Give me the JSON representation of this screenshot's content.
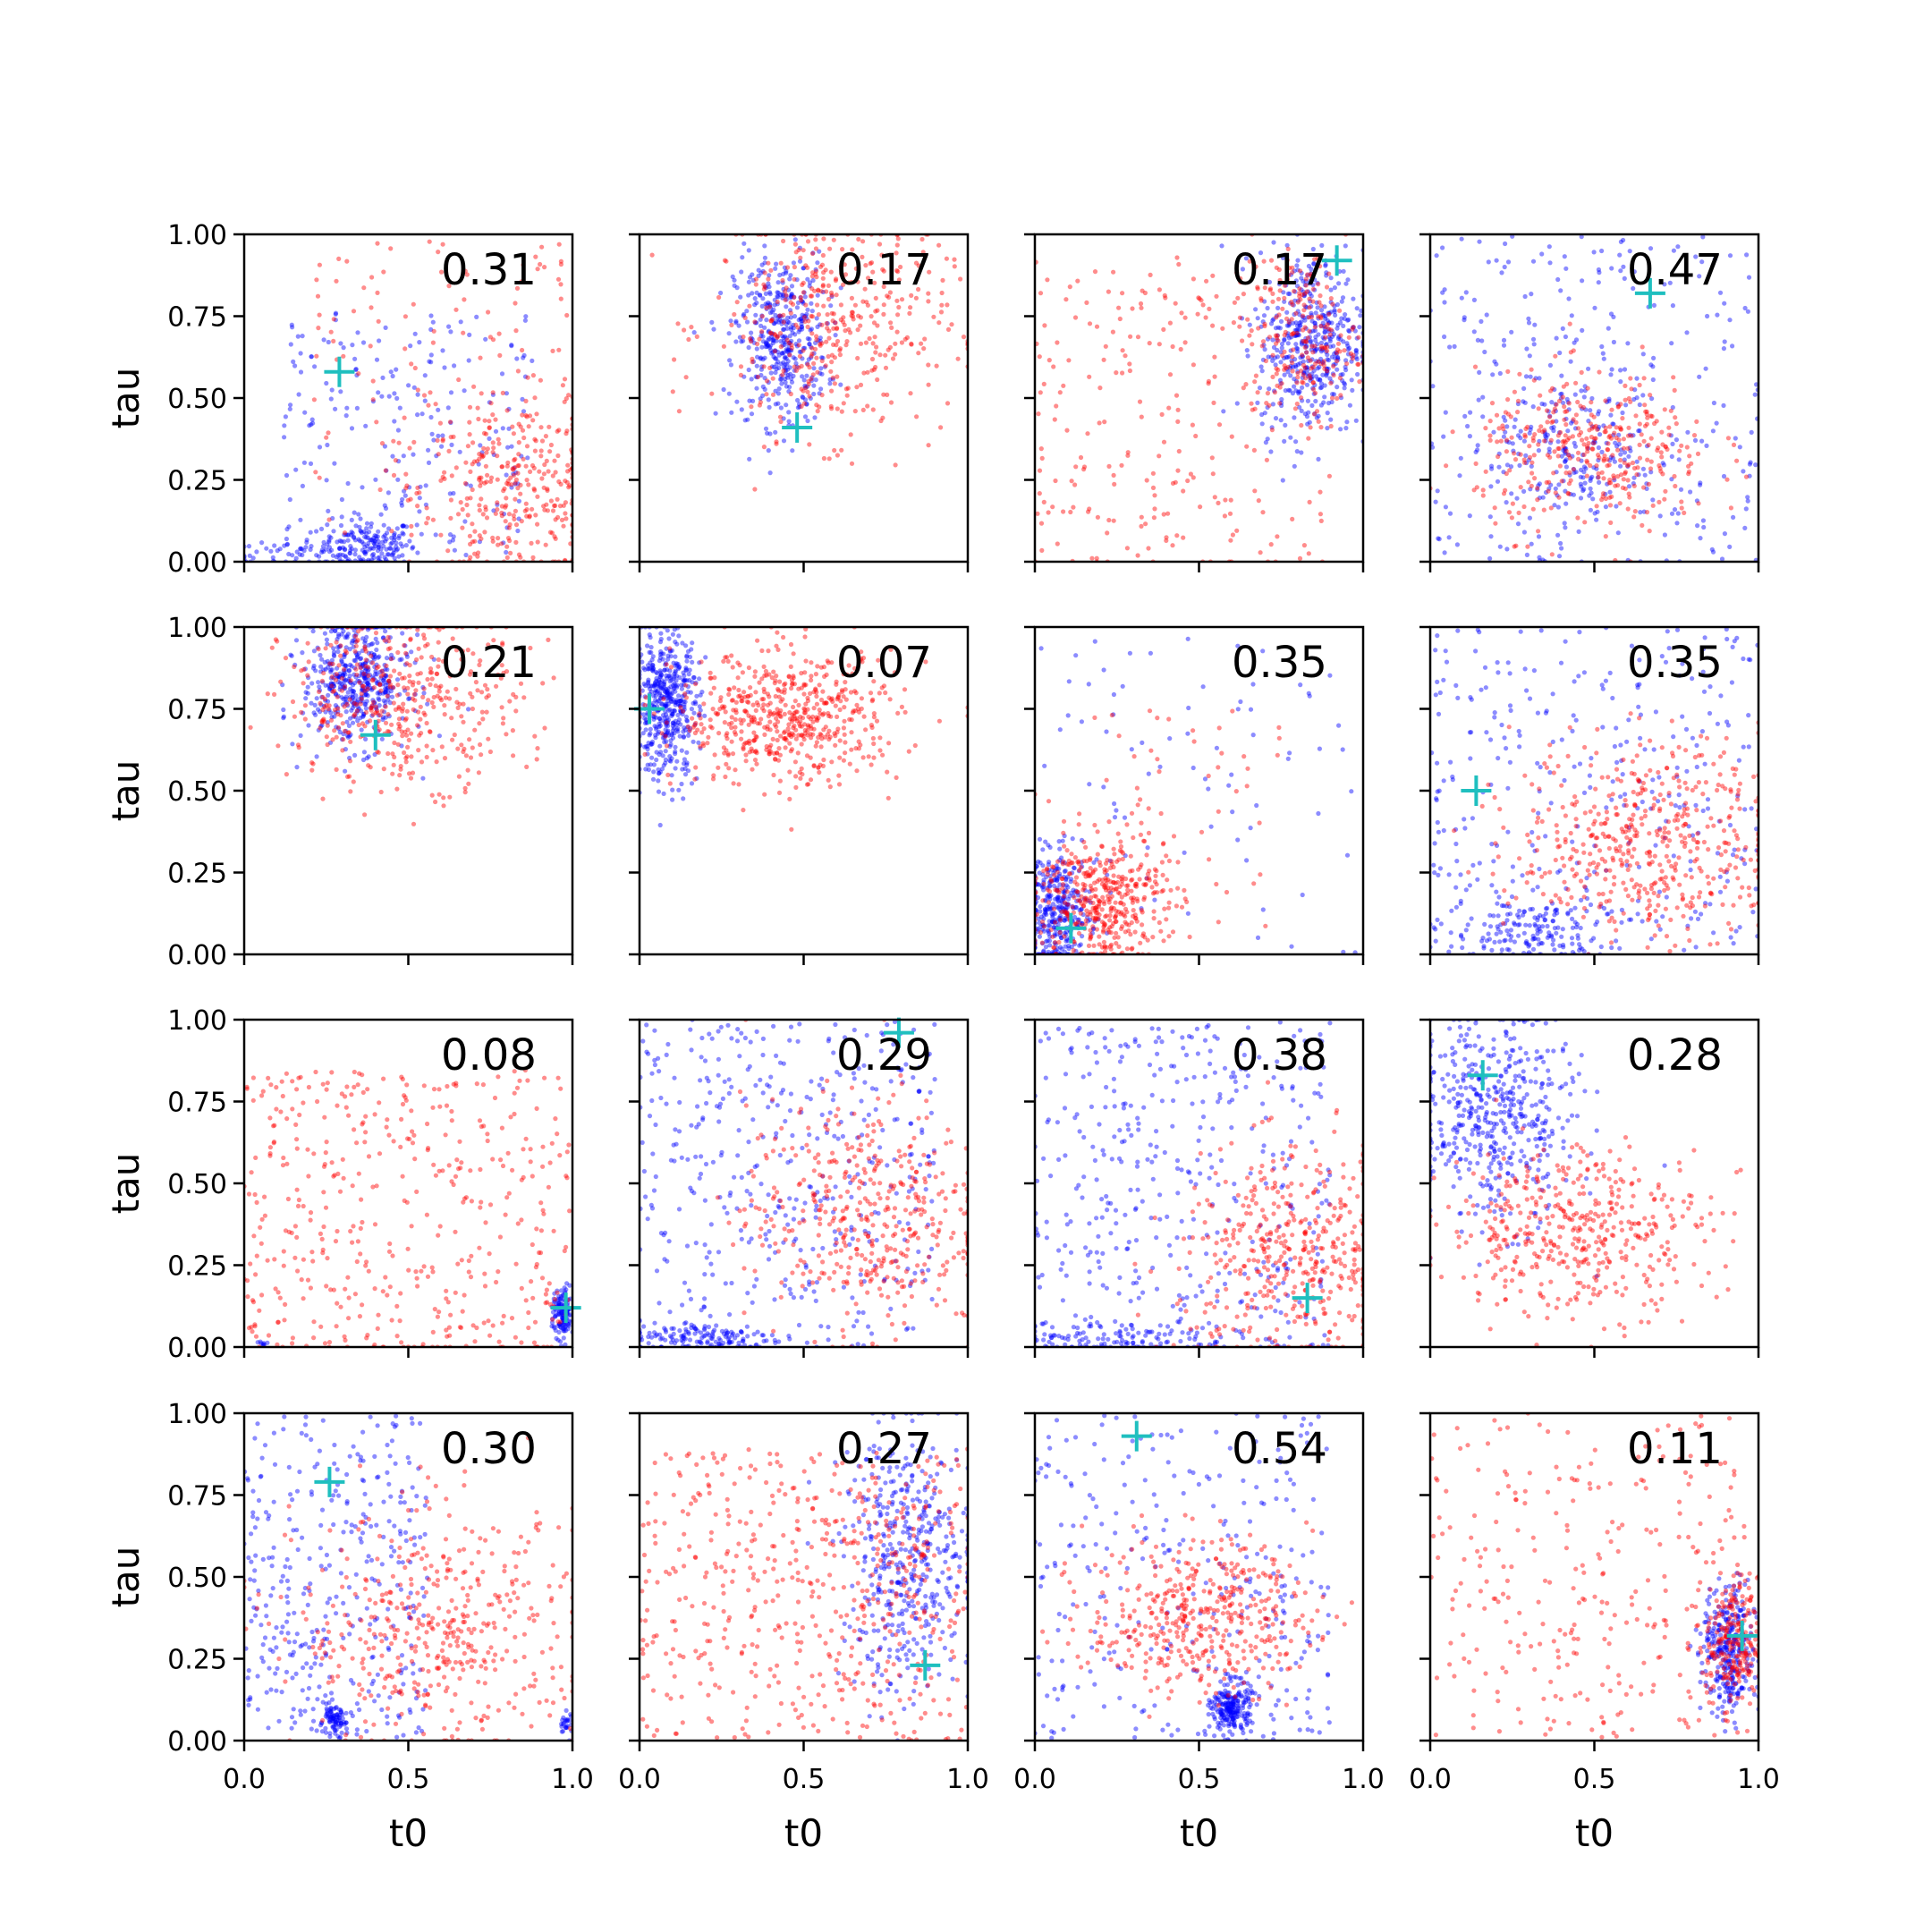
{
  "figure": {
    "xlabel": "t0",
    "ylabel": "tau",
    "rows": 4,
    "cols": 4,
    "xticks": [
      "0.0",
      "0.5",
      "1.0"
    ],
    "yticks": [
      "0.00",
      "0.25",
      "0.50",
      "0.75",
      "1.00"
    ],
    "colors": {
      "blue": "#0000ff",
      "red": "#ff0000",
      "marker": "#1fbfbf",
      "axis": "#000000"
    }
  },
  "chart_data": [
    {
      "type": "scatter",
      "annotation": "0.31",
      "xlim": [
        0,
        1
      ],
      "ylim": [
        0,
        1
      ],
      "marker": [
        0.29,
        0.58
      ],
      "blue": [
        {
          "mx": 0.38,
          "my": 0.05,
          "sx": 0.07,
          "sy": 0.04,
          "n": 170
        },
        {
          "mx": 0.5,
          "my": 0.4,
          "sx": 0.38,
          "sy": 0.38,
          "n": 220,
          "uniform": true
        },
        {
          "mx": 0.15,
          "my": 0.02,
          "sx": 0.15,
          "sy": 0.02,
          "n": 60
        }
      ],
      "red": [
        {
          "mx": 0.82,
          "my": 0.22,
          "sx": 0.14,
          "sy": 0.14,
          "n": 260
        },
        {
          "mx": 0.6,
          "my": 0.5,
          "sx": 0.4,
          "sy": 0.5,
          "n": 160,
          "uniform": true
        }
      ]
    },
    {
      "type": "scatter",
      "annotation": "0.17",
      "xlim": [
        0,
        1
      ],
      "ylim": [
        0,
        1
      ],
      "marker": [
        0.48,
        0.41
      ],
      "blue": [
        {
          "mx": 0.43,
          "my": 0.68,
          "sx": 0.07,
          "sy": 0.13,
          "n": 420
        }
      ],
      "red": [
        {
          "mx": 0.58,
          "my": 0.72,
          "sx": 0.18,
          "sy": 0.17,
          "n": 420
        }
      ]
    },
    {
      "type": "scatter",
      "annotation": "0.17",
      "xlim": [
        0,
        1
      ],
      "ylim": [
        0,
        1
      ],
      "marker": [
        0.92,
        0.92
      ],
      "blue": [
        {
          "mx": 0.84,
          "my": 0.67,
          "sx": 0.08,
          "sy": 0.14,
          "n": 460
        }
      ],
      "red": [
        {
          "mx": 0.82,
          "my": 0.68,
          "sx": 0.08,
          "sy": 0.12,
          "n": 180
        },
        {
          "mx": 0.45,
          "my": 0.45,
          "sx": 0.45,
          "sy": 0.48,
          "n": 260,
          "uniform": true
        }
      ]
    },
    {
      "type": "scatter",
      "annotation": "0.47",
      "xlim": [
        0,
        1
      ],
      "ylim": [
        0,
        1
      ],
      "marker": [
        0.67,
        0.82
      ],
      "blue": [
        {
          "mx": 0.45,
          "my": 0.35,
          "sx": 0.12,
          "sy": 0.12,
          "n": 180
        },
        {
          "mx": 0.5,
          "my": 0.5,
          "sx": 0.5,
          "sy": 0.5,
          "n": 300,
          "uniform": true
        }
      ],
      "red": [
        {
          "mx": 0.5,
          "my": 0.33,
          "sx": 0.18,
          "sy": 0.12,
          "n": 360
        }
      ]
    },
    {
      "type": "scatter",
      "annotation": "0.21",
      "xlim": [
        0,
        1
      ],
      "ylim": [
        0,
        1
      ],
      "marker": [
        0.4,
        0.67
      ],
      "blue": [
        {
          "mx": 0.34,
          "my": 0.84,
          "sx": 0.08,
          "sy": 0.1,
          "n": 480
        }
      ],
      "red": [
        {
          "mx": 0.48,
          "my": 0.78,
          "sx": 0.18,
          "sy": 0.13,
          "n": 440
        }
      ]
    },
    {
      "type": "scatter",
      "annotation": "0.07",
      "xlim": [
        0,
        1
      ],
      "ylim": [
        0,
        1
      ],
      "marker": [
        0.03,
        0.75
      ],
      "blue": [
        {
          "mx": 0.08,
          "my": 0.76,
          "sx": 0.05,
          "sy": 0.11,
          "n": 460
        }
      ],
      "red": [
        {
          "mx": 0.45,
          "my": 0.72,
          "sx": 0.17,
          "sy": 0.1,
          "n": 560
        }
      ]
    },
    {
      "type": "scatter",
      "annotation": "0.35",
      "xlim": [
        0,
        1
      ],
      "ylim": [
        0,
        1
      ],
      "marker": [
        0.11,
        0.08
      ],
      "blue": [
        {
          "mx": 0.07,
          "my": 0.13,
          "sx": 0.05,
          "sy": 0.09,
          "n": 330
        },
        {
          "mx": 0.5,
          "my": 0.5,
          "sx": 0.5,
          "sy": 0.5,
          "n": 90,
          "uniform": true
        }
      ],
      "red": [
        {
          "mx": 0.2,
          "my": 0.17,
          "sx": 0.1,
          "sy": 0.1,
          "n": 420
        },
        {
          "mx": 0.45,
          "my": 0.4,
          "sx": 0.3,
          "sy": 0.35,
          "n": 60,
          "uniform": true
        }
      ]
    },
    {
      "type": "scatter",
      "annotation": "0.35",
      "xlim": [
        0,
        1
      ],
      "ylim": [
        0,
        1
      ],
      "marker": [
        0.14,
        0.5
      ],
      "blue": [
        {
          "mx": 0.3,
          "my": 0.07,
          "sx": 0.12,
          "sy": 0.06,
          "n": 160
        },
        {
          "mx": 0.5,
          "my": 0.5,
          "sx": 0.5,
          "sy": 0.5,
          "n": 320,
          "uniform": true
        }
      ],
      "red": [
        {
          "mx": 0.66,
          "my": 0.35,
          "sx": 0.2,
          "sy": 0.15,
          "n": 480
        }
      ]
    },
    {
      "type": "scatter",
      "annotation": "0.08",
      "xlim": [
        0,
        1
      ],
      "ylim": [
        0,
        1
      ],
      "marker": [
        0.98,
        0.12
      ],
      "blue": [
        {
          "mx": 0.97,
          "my": 0.1,
          "sx": 0.015,
          "sy": 0.04,
          "n": 130
        },
        {
          "mx": 0.06,
          "my": 0.01,
          "sx": 0.01,
          "sy": 0.005,
          "n": 8
        }
      ],
      "red": [
        {
          "mx": 0.5,
          "my": 0.4,
          "sx": 0.5,
          "sy": 0.45,
          "n": 450,
          "uniform": true
        }
      ]
    },
    {
      "type": "scatter",
      "annotation": "0.29",
      "xlim": [
        0,
        1
      ],
      "ylim": [
        0,
        1
      ],
      "marker": [
        0.79,
        0.96
      ],
      "blue": [
        {
          "mx": 0.2,
          "my": 0.03,
          "sx": 0.12,
          "sy": 0.025,
          "n": 140
        },
        {
          "mx": 0.45,
          "my": 0.5,
          "sx": 0.45,
          "sy": 0.5,
          "n": 420,
          "uniform": true
        }
      ],
      "red": [
        {
          "mx": 0.68,
          "my": 0.4,
          "sx": 0.18,
          "sy": 0.18,
          "n": 420
        }
      ]
    },
    {
      "type": "scatter",
      "annotation": "0.38",
      "xlim": [
        0,
        1
      ],
      "ylim": [
        0,
        1
      ],
      "marker": [
        0.83,
        0.15
      ],
      "blue": [
        {
          "mx": 0.25,
          "my": 0.03,
          "sx": 0.18,
          "sy": 0.025,
          "n": 120
        },
        {
          "mx": 0.45,
          "my": 0.5,
          "sx": 0.45,
          "sy": 0.5,
          "n": 400,
          "uniform": true
        }
      ],
      "red": [
        {
          "mx": 0.78,
          "my": 0.28,
          "sx": 0.17,
          "sy": 0.16,
          "n": 420
        }
      ]
    },
    {
      "type": "scatter",
      "annotation": "0.28",
      "xlim": [
        0,
        1
      ],
      "ylim": [
        0,
        1
      ],
      "marker": [
        0.16,
        0.83
      ],
      "blue": [
        {
          "mx": 0.2,
          "my": 0.7,
          "sx": 0.12,
          "sy": 0.16,
          "n": 480
        }
      ],
      "red": [
        {
          "mx": 0.45,
          "my": 0.36,
          "sx": 0.2,
          "sy": 0.13,
          "n": 440
        }
      ]
    },
    {
      "type": "scatter",
      "annotation": "0.30",
      "xlim": [
        0,
        1
      ],
      "ylim": [
        0,
        1
      ],
      "marker": [
        0.26,
        0.79
      ],
      "blue": [
        {
          "mx": 0.27,
          "my": 0.06,
          "sx": 0.02,
          "sy": 0.02,
          "n": 80
        },
        {
          "mx": 0.98,
          "my": 0.05,
          "sx": 0.01,
          "sy": 0.02,
          "n": 25
        },
        {
          "mx": 0.28,
          "my": 0.5,
          "sx": 0.28,
          "sy": 0.5,
          "n": 360,
          "uniform": true
        }
      ],
      "red": [
        {
          "mx": 0.6,
          "my": 0.33,
          "sx": 0.22,
          "sy": 0.18,
          "n": 440
        }
      ]
    },
    {
      "type": "scatter",
      "annotation": "0.27",
      "xlim": [
        0,
        1
      ],
      "ylim": [
        0,
        1
      ],
      "marker": [
        0.87,
        0.23
      ],
      "blue": [
        {
          "mx": 0.82,
          "my": 0.55,
          "sx": 0.1,
          "sy": 0.2,
          "n": 440
        }
      ],
      "red": [
        {
          "mx": 0.5,
          "my": 0.45,
          "sx": 0.5,
          "sy": 0.45,
          "n": 420,
          "uniform": true
        },
        {
          "mx": 0.7,
          "my": 0.5,
          "sx": 0.15,
          "sy": 0.15,
          "n": 120
        }
      ]
    },
    {
      "type": "scatter",
      "annotation": "0.54",
      "xlim": [
        0,
        1
      ],
      "ylim": [
        0,
        1
      ],
      "marker": [
        0.31,
        0.93
      ],
      "blue": [
        {
          "mx": 0.6,
          "my": 0.1,
          "sx": 0.03,
          "sy": 0.04,
          "n": 220
        },
        {
          "mx": 0.45,
          "my": 0.5,
          "sx": 0.45,
          "sy": 0.5,
          "n": 300,
          "uniform": true
        }
      ],
      "red": [
        {
          "mx": 0.5,
          "my": 0.38,
          "sx": 0.17,
          "sy": 0.12,
          "n": 440
        }
      ]
    },
    {
      "type": "scatter",
      "annotation": "0.11",
      "xlim": [
        0,
        1
      ],
      "ylim": [
        0,
        1
      ],
      "marker": [
        0.95,
        0.32
      ],
      "blue": [
        {
          "mx": 0.91,
          "my": 0.27,
          "sx": 0.04,
          "sy": 0.1,
          "n": 330
        }
      ],
      "red": [
        {
          "mx": 0.92,
          "my": 0.3,
          "sx": 0.04,
          "sy": 0.1,
          "n": 200
        },
        {
          "mx": 0.5,
          "my": 0.5,
          "sx": 0.5,
          "sy": 0.5,
          "n": 300,
          "uniform": true
        }
      ]
    }
  ]
}
